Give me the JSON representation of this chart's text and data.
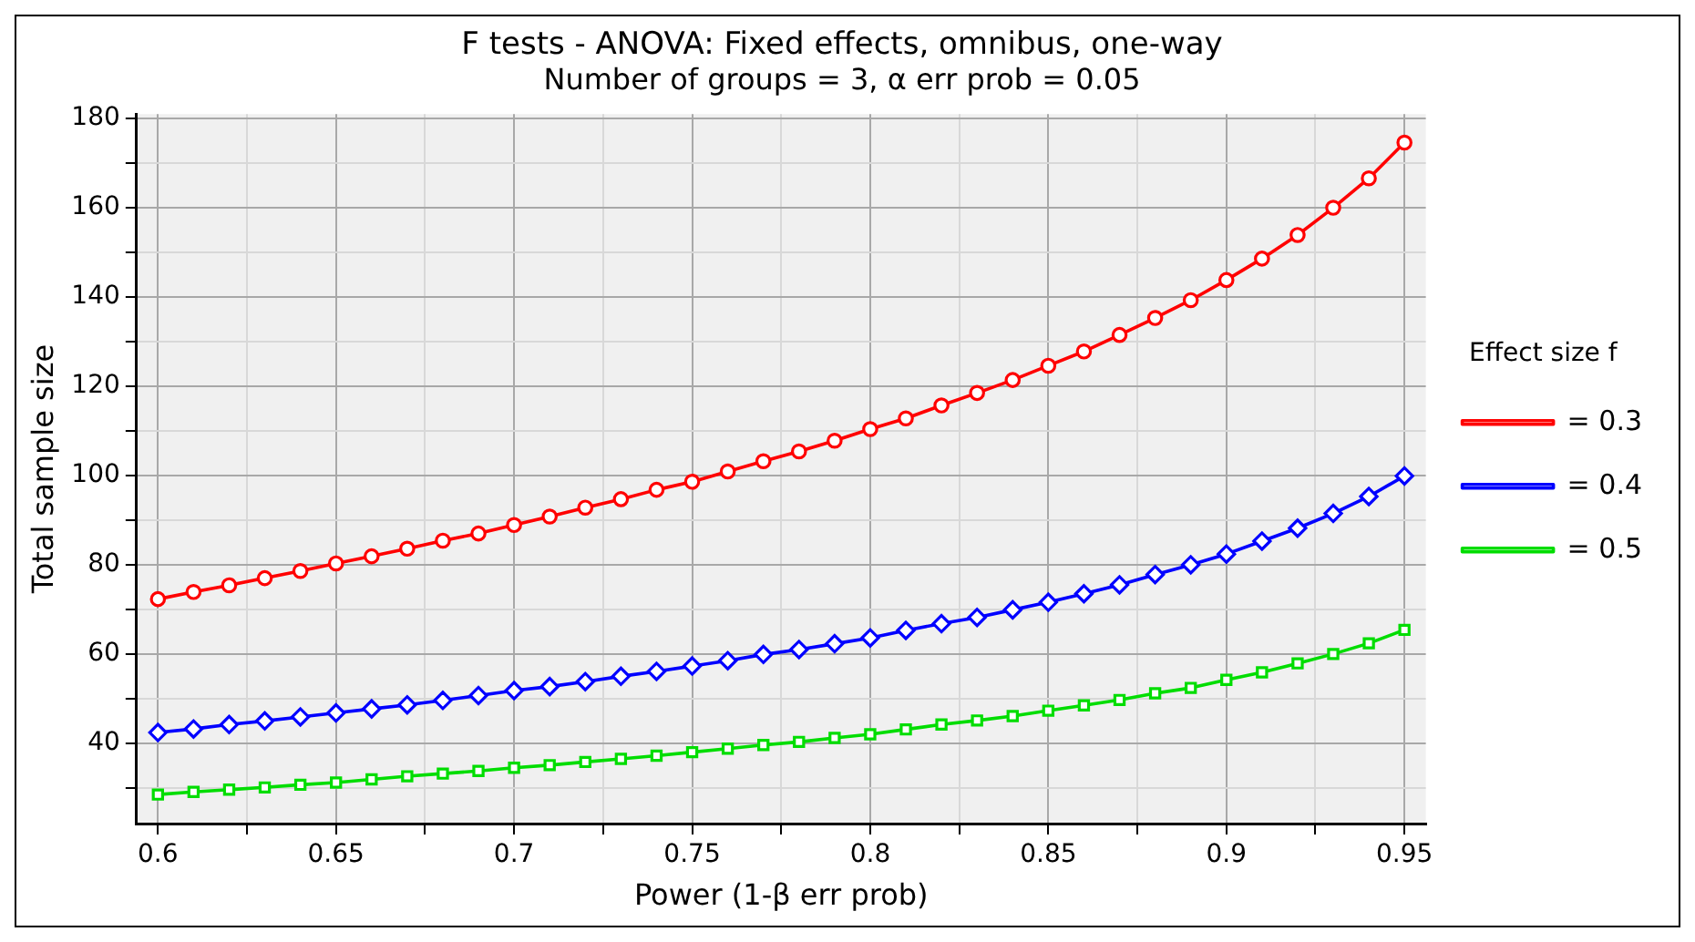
{
  "chart_data": {
    "type": "line",
    "title": "F tests - ANOVA: Fixed effects, omnibus, one-way",
    "subtitle": "Number of groups = 3, α err prob = 0.05",
    "xlabel": "Power (1-β err prob)",
    "ylabel": "Total sample size",
    "legend_title": "Effect size f",
    "x": [
      0.6,
      0.61,
      0.62,
      0.63,
      0.64,
      0.65,
      0.66,
      0.67,
      0.68,
      0.69,
      0.7,
      0.71,
      0.72,
      0.73,
      0.74,
      0.75,
      0.76,
      0.77,
      0.78,
      0.79,
      0.8,
      0.81,
      0.82,
      0.83,
      0.84,
      0.85,
      0.86,
      0.87,
      0.88,
      0.89,
      0.9,
      0.91,
      0.92,
      0.93,
      0.94,
      0.95
    ],
    "series": [
      {
        "name": "= 0.3",
        "color": "#ff0000",
        "marker": "circle",
        "values": [
          72.3,
          73.9,
          75.4,
          77.0,
          78.6,
          80.3,
          81.9,
          83.6,
          85.4,
          87.0,
          88.9,
          90.8,
          92.8,
          94.7,
          96.8,
          98.6,
          100.9,
          103.2,
          105.4,
          107.8,
          110.4,
          112.8,
          115.7,
          118.5,
          121.4,
          124.6,
          127.8,
          131.5,
          135.3,
          139.3,
          143.8,
          148.6,
          153.9,
          160.0,
          166.6,
          174.6
        ]
      },
      {
        "name": "= 0.4",
        "color": "#0000ff",
        "marker": "diamond",
        "values": [
          42.4,
          43.2,
          44.2,
          45.0,
          45.9,
          46.8,
          47.7,
          48.6,
          49.6,
          50.7,
          51.8,
          52.7,
          53.8,
          55.0,
          56.1,
          57.3,
          58.5,
          59.9,
          61.0,
          62.3,
          63.6,
          65.3,
          66.8,
          68.2,
          69.9,
          71.6,
          73.5,
          75.5,
          77.8,
          80.0,
          82.4,
          85.3,
          88.2,
          91.5,
          95.3,
          99.9
        ]
      },
      {
        "name": "= 0.5",
        "color": "#00dd00",
        "marker": "square",
        "values": [
          28.5,
          29.1,
          29.6,
          30.1,
          30.7,
          31.2,
          31.9,
          32.6,
          33.2,
          33.8,
          34.5,
          35.1,
          35.8,
          36.5,
          37.2,
          38.0,
          38.8,
          39.6,
          40.3,
          41.2,
          42.0,
          43.1,
          44.2,
          45.1,
          46.1,
          47.3,
          48.5,
          49.7,
          51.2,
          52.4,
          54.2,
          55.9,
          57.9,
          60.0,
          62.4,
          65.4
        ]
      }
    ],
    "xlim": [
      0.594,
      0.956
    ],
    "ylim": [
      22,
      181
    ],
    "xticks": [
      0.6,
      {
        "value": 0.625,
        "label": null
      },
      0.65,
      {
        "value": 0.675,
        "label": null
      },
      0.7,
      {
        "value": 0.725,
        "label": null
      },
      0.75,
      {
        "value": 0.775,
        "label": null
      },
      0.8,
      {
        "value": 0.825,
        "label": null
      },
      0.85,
      {
        "value": 0.875,
        "label": null
      },
      0.9,
      {
        "value": 0.925,
        "label": null
      },
      0.95
    ],
    "yticks": [
      {
        "value": 30,
        "label": null
      },
      40,
      {
        "value": 50,
        "label": null
      },
      60,
      {
        "value": 70,
        "label": null
      },
      80,
      {
        "value": 90,
        "label": null
      },
      100,
      {
        "value": 110,
        "label": null
      },
      120,
      {
        "value": 130,
        "label": null
      },
      140,
      {
        "value": 150,
        "label": null
      },
      160,
      {
        "value": 170,
        "label": null
      },
      180
    ],
    "grid": true,
    "legend": "right",
    "line_style": "solid"
  }
}
